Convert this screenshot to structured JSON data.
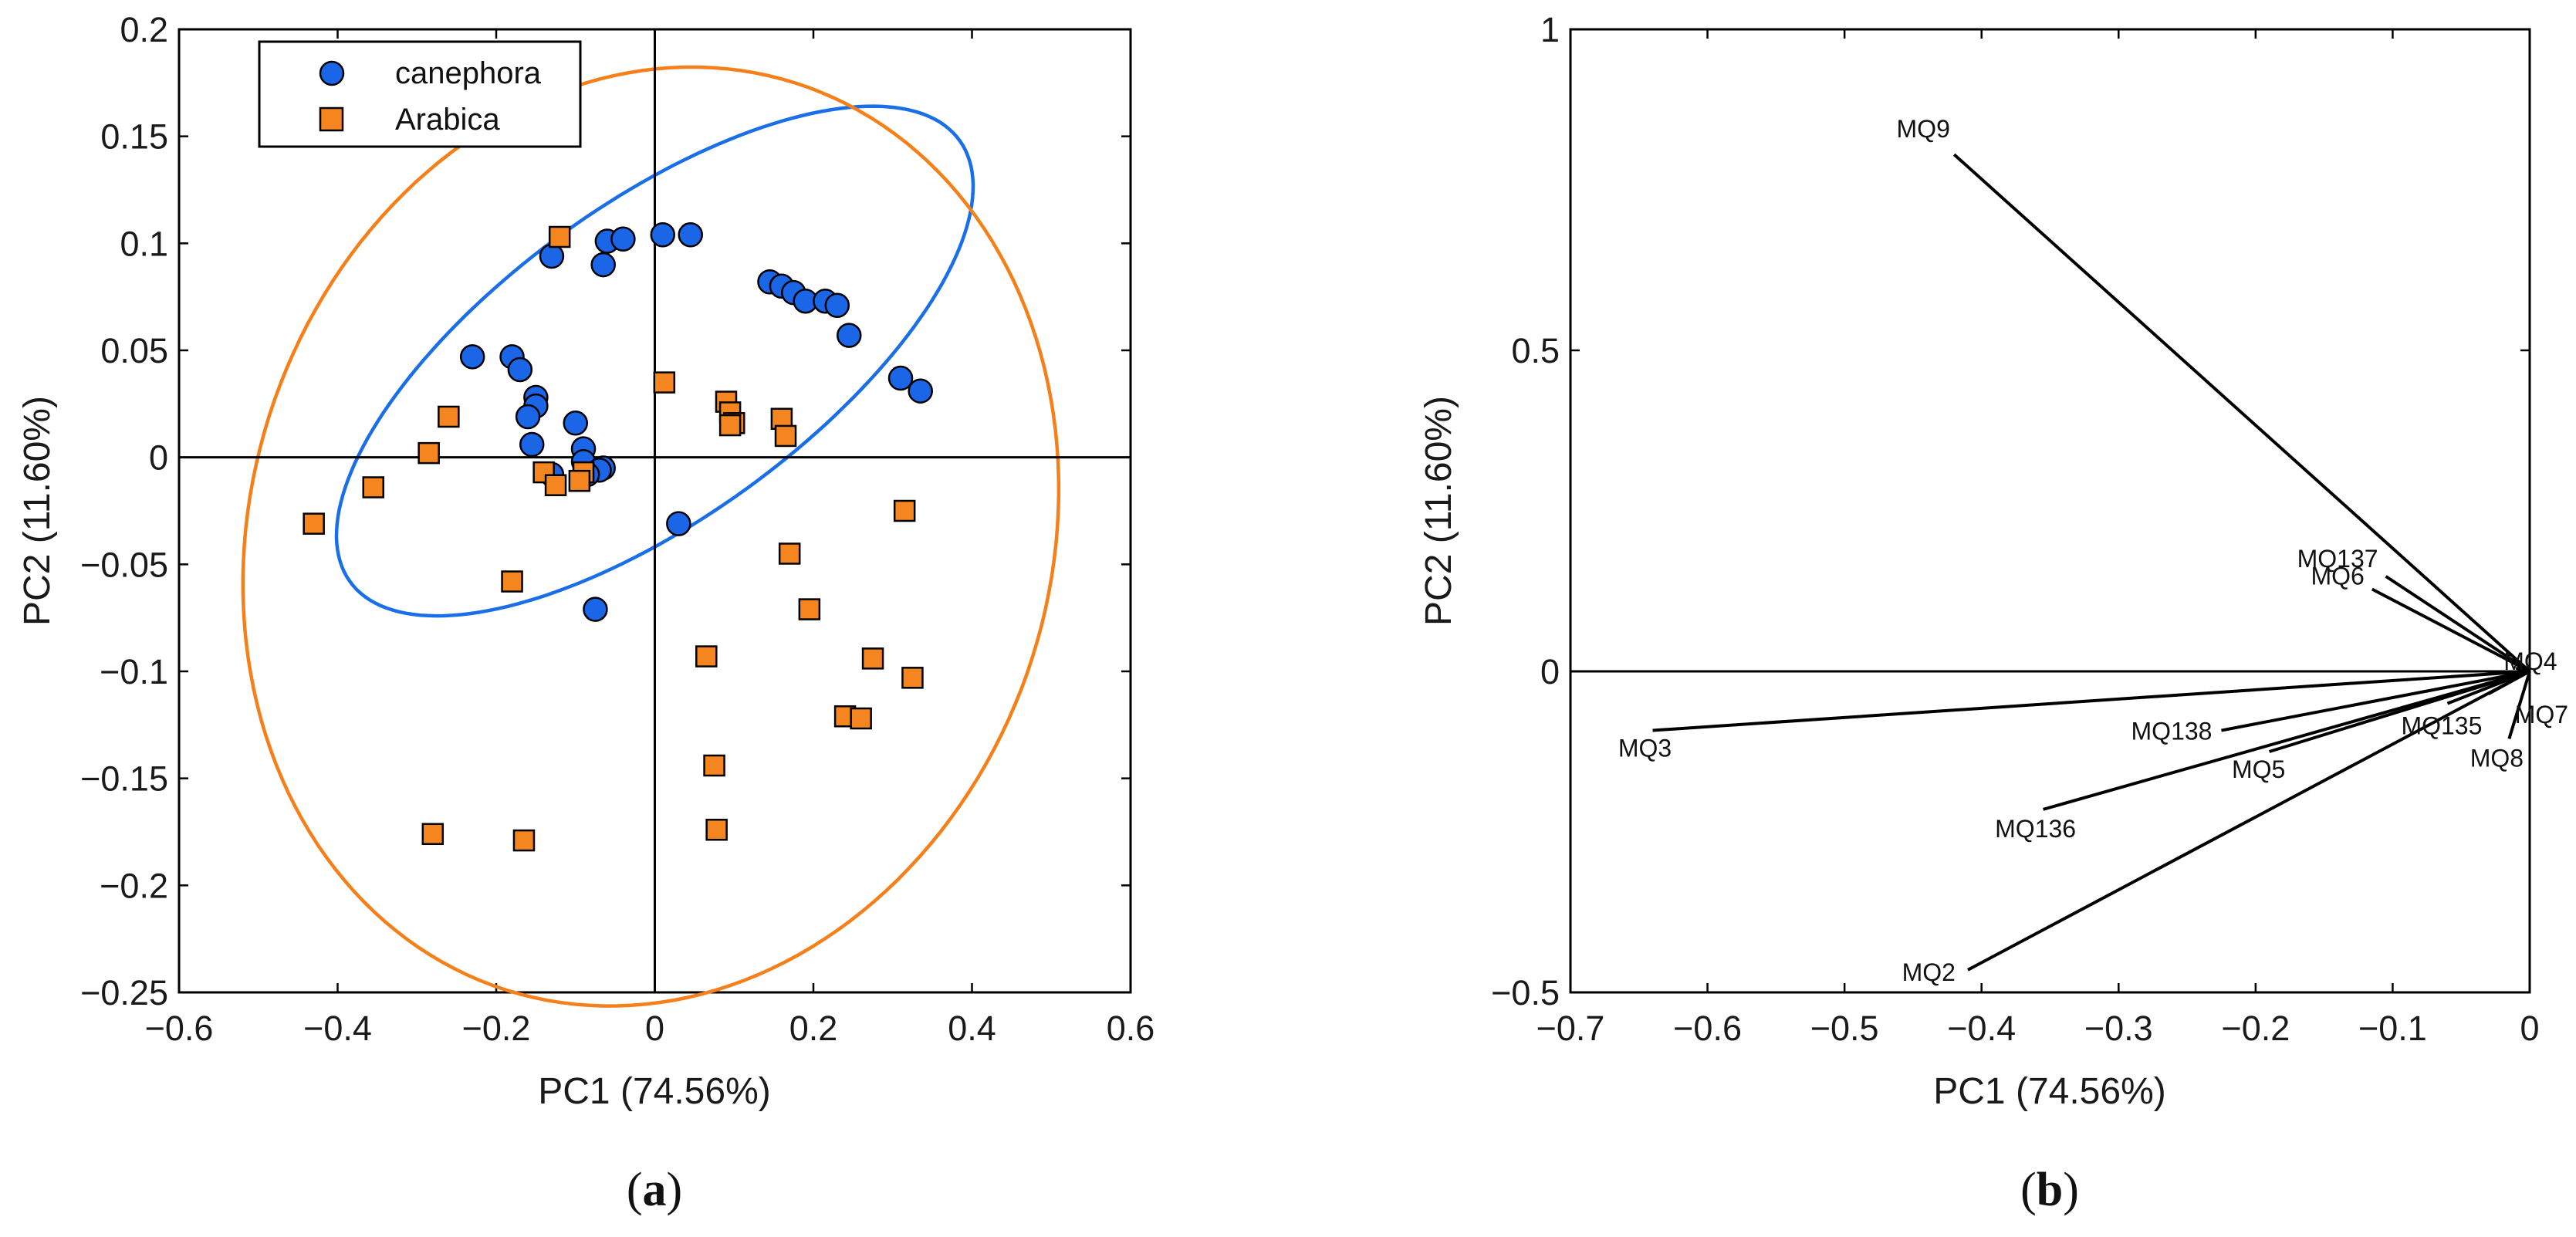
{
  "colors": {
    "canephora": "#1a66e6",
    "arabica": "#f5861f",
    "ellipse_canephora": "#1a6fe8",
    "ellipse_arabica": "#f5801a",
    "axis": "#000000",
    "vector": "#000000"
  },
  "chart_data": [
    {
      "type": "scatter",
      "caption_open": "(",
      "caption": "a",
      "caption_close": ")",
      "xlabel": "PC1 (74.56%)",
      "ylabel": "PC2 (11.60%)",
      "xlim": [
        -0.6,
        0.6
      ],
      "ylim": [
        -0.25,
        0.2
      ],
      "xticks": [
        -0.6,
        -0.4,
        -0.2,
        0,
        0.2,
        0.4,
        0.6
      ],
      "xtick_labels": [
        "−0.6",
        "−0.4",
        "−0.2",
        "0",
        "0.2",
        "0.4",
        "0.6"
      ],
      "yticks": [
        -0.25,
        -0.2,
        -0.15,
        -0.1,
        -0.05,
        0,
        0.05,
        0.1,
        0.15,
        0.2
      ],
      "ytick_labels": [
        "−0.25",
        "−0.2",
        "−0.15",
        "−0.1",
        "−0.05",
        "0",
        "0.05",
        "0.1",
        "0.15",
        "0.2"
      ],
      "legend": [
        "canephora",
        "Arabica"
      ],
      "legend_position": "top-left",
      "series": [
        {
          "name": "canephora",
          "marker": "circle",
          "points": [
            [
              -0.13,
              0.094
            ],
            [
              -0.06,
              0.101
            ],
            [
              -0.04,
              0.102
            ],
            [
              -0.065,
              0.09
            ],
            [
              0.01,
              0.104
            ],
            [
              0.045,
              0.104
            ],
            [
              0.145,
              0.082
            ],
            [
              0.16,
              0.08
            ],
            [
              0.175,
              0.077
            ],
            [
              0.19,
              0.073
            ],
            [
              0.215,
              0.073
            ],
            [
              0.23,
              0.071
            ],
            [
              0.245,
              0.057
            ],
            [
              -0.23,
              0.047
            ],
            [
              -0.18,
              0.047
            ],
            [
              -0.17,
              0.041
            ],
            [
              -0.15,
              0.028
            ],
            [
              -0.15,
              0.024
            ],
            [
              -0.16,
              0.019
            ],
            [
              -0.1,
              0.016
            ],
            [
              -0.155,
              0.006
            ],
            [
              -0.09,
              0.004
            ],
            [
              -0.09,
              -0.002
            ],
            [
              -0.065,
              -0.005
            ],
            [
              -0.07,
              -0.006
            ],
            [
              -0.085,
              -0.008
            ],
            [
              -0.13,
              -0.008
            ],
            [
              0.03,
              -0.031
            ],
            [
              -0.075,
              -0.071
            ],
            [
              0.31,
              0.037
            ],
            [
              0.335,
              0.031
            ]
          ]
        },
        {
          "name": "Arabica",
          "marker": "square",
          "points": [
            [
              -0.12,
              0.103
            ],
            [
              0.012,
              0.035
            ],
            [
              0.09,
              0.026
            ],
            [
              0.095,
              0.021
            ],
            [
              0.1,
              0.016
            ],
            [
              0.095,
              0.015
            ],
            [
              0.16,
              0.018
            ],
            [
              0.165,
              0.01
            ],
            [
              -0.26,
              0.019
            ],
            [
              -0.285,
              0.002
            ],
            [
              -0.355,
              -0.014
            ],
            [
              -0.43,
              -0.031
            ],
            [
              -0.14,
              -0.007
            ],
            [
              -0.125,
              -0.013
            ],
            [
              -0.09,
              -0.007
            ],
            [
              -0.095,
              -0.011
            ],
            [
              -0.18,
              -0.058
            ],
            [
              0.17,
              -0.045
            ],
            [
              0.195,
              -0.071
            ],
            [
              0.315,
              -0.025
            ],
            [
              0.065,
              -0.093
            ],
            [
              0.275,
              -0.094
            ],
            [
              0.325,
              -0.103
            ],
            [
              0.24,
              -0.121
            ],
            [
              0.26,
              -0.122
            ],
            [
              0.075,
              -0.144
            ],
            [
              0.078,
              -0.174
            ],
            [
              -0.28,
              -0.176
            ],
            [
              -0.165,
              -0.179
            ]
          ]
        }
      ],
      "ellipses": [
        {
          "name": "canephora",
          "cx": -0.0,
          "cy": 0.045,
          "rx": 0.41,
          "ry": 0.085,
          "angle_deg": 12
        },
        {
          "name": "Arabica",
          "cx": -0.005,
          "cy": -0.037,
          "rx": 0.515,
          "ry": 0.218,
          "angle_deg": 3
        }
      ]
    },
    {
      "type": "biplot",
      "caption_open": "(",
      "caption": "b",
      "caption_close": ")",
      "xlabel": "PC1 (74.56%)",
      "ylabel": "PC2 (11.60%)",
      "xlim": [
        -0.7,
        0
      ],
      "ylim": [
        -0.5,
        1
      ],
      "xticks": [
        -0.7,
        -0.6,
        -0.5,
        -0.4,
        -0.3,
        -0.2,
        -0.1,
        0
      ],
      "xtick_labels": [
        "−0.7",
        "−0.6",
        "−0.5",
        "−0.4",
        "−0.3",
        "−0.2",
        "−0.1",
        "0"
      ],
      "yticks": [
        -0.5,
        0,
        0.5,
        1
      ],
      "ytick_labels": [
        "−0.5",
        "0",
        "0.5",
        "1"
      ],
      "vectors": [
        {
          "label": "MQ9",
          "x": -0.42,
          "y": 0.805
        },
        {
          "label": "MQ137",
          "x": -0.105,
          "y": 0.148
        },
        {
          "label": "MQ6",
          "x": -0.115,
          "y": 0.128
        },
        {
          "label": "MQ4",
          "x": -0.01,
          "y": 0.005
        },
        {
          "label": "MQ3",
          "x": -0.64,
          "y": -0.092
        },
        {
          "label": "MQ138",
          "x": -0.225,
          "y": -0.092
        },
        {
          "label": "MQ5",
          "x": -0.19,
          "y": -0.125
        },
        {
          "label": "MQ136",
          "x": -0.355,
          "y": -0.215
        },
        {
          "label": "MQ2",
          "x": -0.41,
          "y": -0.465
        },
        {
          "label": "MQ8",
          "x": -0.015,
          "y": -0.105
        },
        {
          "label": "MQ135",
          "x": -0.06,
          "y": -0.05
        },
        {
          "label": "MQ7",
          "x": -0.03,
          "y": -0.035
        }
      ]
    }
  ]
}
